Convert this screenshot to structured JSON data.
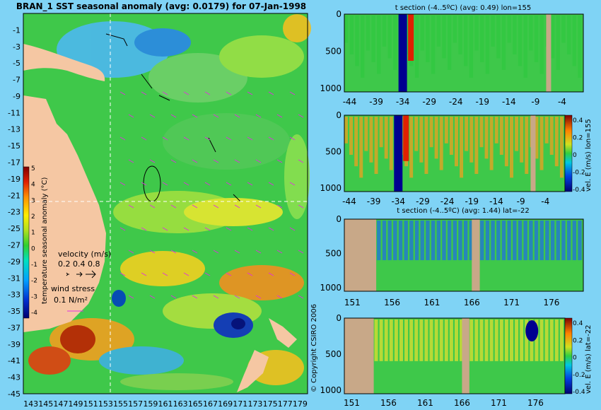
{
  "chart_data": [
    {
      "type": "heatmap",
      "title": "BRAN_1 SST seasonal anomaly (avg: 0.0179) for 07-Jan-1998",
      "x_ticks": [
        143,
        145,
        147,
        149,
        151,
        153,
        155,
        157,
        159,
        161,
        163,
        165,
        167,
        169,
        171,
        173,
        175,
        177,
        179
      ],
      "y_ticks": [
        -1,
        -3,
        -5,
        -7,
        -9,
        -11,
        -13,
        -15,
        -17,
        -19,
        -21,
        -23,
        -25,
        -27,
        -29,
        -31,
        -33,
        -35,
        -37,
        -39,
        -41,
        -43,
        -45
      ],
      "xlim": [
        142,
        180
      ],
      "ylim": [
        -45,
        1
      ],
      "colorbar": {
        "label": "temperature seasonal anomaly (°C)",
        "ticks": [
          5,
          4,
          3,
          2,
          1,
          0,
          -1,
          -2,
          -3,
          -4
        ]
      },
      "velocity_legend": {
        "label": "velocity (m/s)",
        "values": "0.2 0.4 0.8"
      },
      "wind_legend": {
        "label": "wind stress",
        "value": "0.1 N/m²"
      },
      "crosshair": {
        "lon": 155,
        "lat": -22
      }
    },
    {
      "type": "heatmap",
      "title": "t section (-4..5ºC) (avg: 0.49) lon=155",
      "x_ticks": [
        -44,
        -39,
        -34,
        -29,
        -24,
        -19,
        -14,
        -9,
        -4
      ],
      "y_ticks": [
        0,
        500,
        1000
      ],
      "xlim": [
        -45,
        0
      ],
      "ylim": [
        1050,
        0
      ]
    },
    {
      "type": "heatmap",
      "title": "",
      "x_ticks": [
        -44,
        -39,
        -34,
        -29,
        -24,
        -19,
        -14,
        -9,
        -4
      ],
      "y_ticks": [
        0,
        500,
        1000
      ],
      "xlim": [
        -45,
        0
      ],
      "ylim": [
        1050,
        0
      ],
      "colorbar": {
        "label": "vel. E (m/s) lon=155",
        "ticks": [
          0.4,
          0.2,
          0,
          -0.2,
          -0.4
        ]
      }
    },
    {
      "type": "heatmap",
      "title": "t section (-4..5ºC) (avg: 1.44) lat=-22",
      "x_ticks": [
        151,
        156,
        161,
        166,
        171,
        176
      ],
      "y_ticks": [
        0,
        500,
        1000
      ],
      "xlim": [
        150,
        180
      ],
      "ylim": [
        1050,
        0
      ]
    },
    {
      "type": "heatmap",
      "title": "",
      "x_ticks": [
        151,
        156,
        161,
        166,
        171,
        176
      ],
      "y_ticks": [
        0,
        500,
        1000
      ],
      "xlim": [
        150,
        180
      ],
      "ylim": [
        1050,
        0
      ],
      "colorbar": {
        "label": "vel. E (m/s) lat=-22",
        "ticks": [
          0.4,
          0.2,
          0,
          -0.2,
          -0.4
        ]
      }
    }
  ],
  "copyright": "© Copyright CSIRO 2006"
}
